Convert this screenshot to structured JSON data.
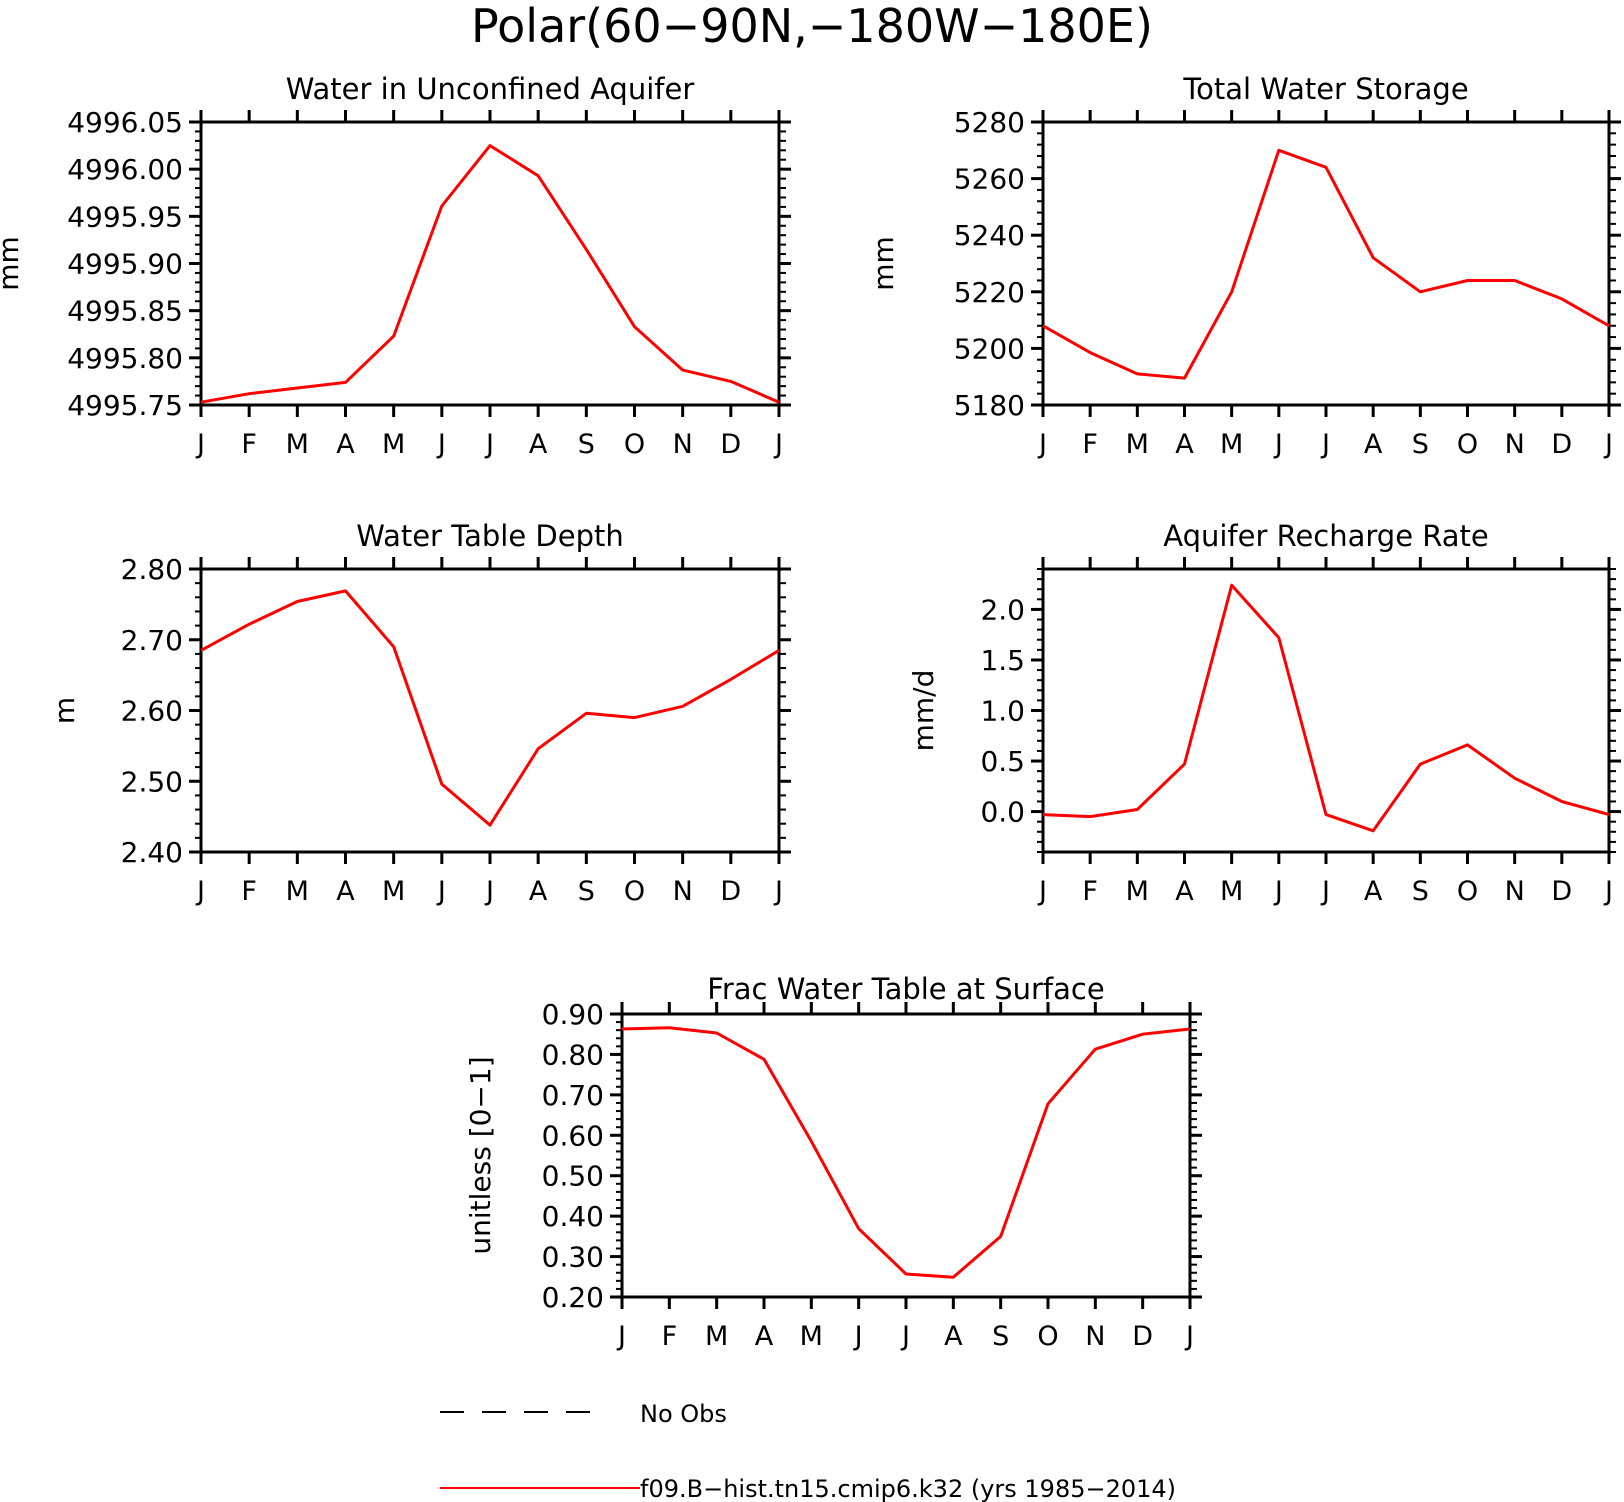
{
  "figure": {
    "title": "Polar(60−90N,−180W−180E)",
    "legend": [
      {
        "label": "No Obs",
        "color": "#000000",
        "dash": "dashed"
      },
      {
        "label": "f09.B−hist.tn15.cmip6.k32 (yrs 1985−2014)",
        "color": "#ff0000",
        "dash": "solid"
      }
    ]
  },
  "chart_data": [
    {
      "type": "line",
      "title": "Water in Unconfined Aquifer",
      "ylabel": "mm",
      "categories": [
        "J",
        "F",
        "M",
        "A",
        "M",
        "J",
        "J",
        "A",
        "S",
        "O",
        "N",
        "D",
        "J"
      ],
      "ylim": [
        4995.75,
        4996.05
      ],
      "yticks": [
        "4995.75",
        "4995.80",
        "4995.85",
        "4995.90",
        "4995.95",
        "4996.00",
        "4996.05"
      ],
      "series": [
        {
          "color": "#ff0000",
          "values": [
            4995.753,
            4995.762,
            4995.768,
            4995.774,
            4995.823,
            4995.961,
            4996.025,
            4995.993,
            4995.915,
            4995.833,
            4995.787,
            4995.775,
            4995.753
          ]
        }
      ]
    },
    {
      "type": "line",
      "title": "Total Water Storage",
      "ylabel": "mm",
      "categories": [
        "J",
        "F",
        "M",
        "A",
        "M",
        "J",
        "J",
        "A",
        "S",
        "O",
        "N",
        "D",
        "J"
      ],
      "ylim": [
        5180,
        5280
      ],
      "yticks": [
        "5180",
        "5200",
        "5220",
        "5240",
        "5260",
        "5280"
      ],
      "series": [
        {
          "color": "#ff0000",
          "values": [
            5208,
            5198.5,
            5191,
            5189.5,
            5220,
            5270,
            5264,
            5232,
            5220,
            5224,
            5224,
            5217.5,
            5208
          ]
        }
      ]
    },
    {
      "type": "line",
      "title": "Water Table Depth",
      "ylabel": "m",
      "categories": [
        "J",
        "F",
        "M",
        "A",
        "M",
        "J",
        "J",
        "A",
        "S",
        "O",
        "N",
        "D",
        "J"
      ],
      "ylim": [
        2.4,
        2.8
      ],
      "yticks": [
        "2.40",
        "2.50",
        "2.60",
        "2.70",
        "2.80"
      ],
      "series": [
        {
          "color": "#ff0000",
          "values": [
            2.685,
            2.722,
            2.754,
            2.769,
            2.69,
            2.496,
            2.438,
            2.546,
            2.596,
            2.59,
            2.606,
            2.644,
            2.685
          ]
        }
      ]
    },
    {
      "type": "line",
      "title": "Aquifer Recharge Rate",
      "ylabel": "mm/d",
      "categories": [
        "J",
        "F",
        "M",
        "A",
        "M",
        "J",
        "J",
        "A",
        "S",
        "O",
        "N",
        "D",
        "J"
      ],
      "ylim": [
        -0.4,
        2.4
      ],
      "yticks": [
        "0.0",
        "0.5",
        "1.0",
        "1.5",
        "2.0"
      ],
      "ytick_values": [
        0.0,
        0.5,
        1.0,
        1.5,
        2.0
      ],
      "series": [
        {
          "color": "#ff0000",
          "values": [
            -0.03,
            -0.05,
            0.02,
            0.47,
            2.24,
            1.72,
            -0.03,
            -0.19,
            0.47,
            0.66,
            0.33,
            0.1,
            -0.03
          ]
        }
      ]
    },
    {
      "type": "line",
      "title": "Frac Water Table at Surface",
      "ylabel": "unitless [0−1]",
      "categories": [
        "J",
        "F",
        "M",
        "A",
        "M",
        "J",
        "J",
        "A",
        "S",
        "O",
        "N",
        "D",
        "J"
      ],
      "ylim": [
        0.2,
        0.9
      ],
      "yticks": [
        "0.20",
        "0.30",
        "0.40",
        "0.50",
        "0.60",
        "0.70",
        "0.80",
        "0.90"
      ],
      "series": [
        {
          "color": "#ff0000",
          "values": [
            0.863,
            0.866,
            0.853,
            0.788,
            0.585,
            0.369,
            0.257,
            0.249,
            0.35,
            0.678,
            0.813,
            0.85,
            0.863
          ]
        }
      ]
    }
  ]
}
